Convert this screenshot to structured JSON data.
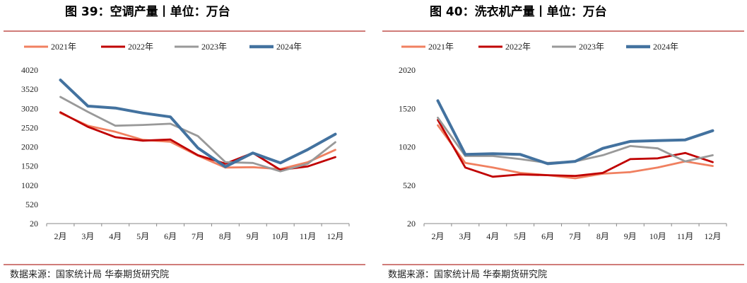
{
  "source_text": "数据来源：国家统计局 华泰期货研究院",
  "chart_data": [
    {
      "type": "line",
      "title": "图 39：空调产量丨单位：万台",
      "categories": [
        "2月",
        "3月",
        "4月",
        "5月",
        "6月",
        "7月",
        "8月",
        "9月",
        "10月",
        "11月",
        "12月"
      ],
      "ylim": [
        20,
        4020
      ],
      "yticks": [
        20,
        520,
        1020,
        1520,
        2020,
        2520,
        3020,
        3520,
        4020
      ],
      "grid": false,
      "legend_position": "top",
      "series": [
        {
          "name": "2021年",
          "color": "#f08060",
          "values": [
            2900,
            2570,
            2410,
            2200,
            2150,
            1790,
            1480,
            1490,
            1440,
            1620,
            1940
          ]
        },
        {
          "name": "2022年",
          "color": "#c00000",
          "values": [
            2920,
            2540,
            2270,
            2180,
            2210,
            1800,
            1580,
            1860,
            1420,
            1510,
            1750
          ]
        },
        {
          "name": "2023年",
          "color": "#999999",
          "values": [
            3320,
            2930,
            2570,
            2590,
            2620,
            2300,
            1620,
            1600,
            1380,
            1580,
            2140
          ]
        },
        {
          "name": "2024年",
          "color": "#43729f",
          "values": [
            3760,
            3080,
            3030,
            2900,
            2800,
            1990,
            1500,
            1860,
            1600,
            1950,
            2350
          ]
        }
      ]
    },
    {
      "type": "line",
      "title": "图 40：洗衣机产量丨单位：万台",
      "categories": [
        "2月",
        "3月",
        "4月",
        "5月",
        "6月",
        "7月",
        "8月",
        "9月",
        "10月",
        "11月",
        "12月"
      ],
      "ylim": [
        20,
        2020
      ],
      "yticks": [
        20,
        520,
        1020,
        1520,
        2020
      ],
      "grid": false,
      "legend_position": "top",
      "series": [
        {
          "name": "2021年",
          "color": "#f08060",
          "values": [
            1300,
            810,
            750,
            680,
            650,
            610,
            670,
            690,
            750,
            830,
            770
          ]
        },
        {
          "name": "2022年",
          "color": "#c00000",
          "values": [
            1370,
            750,
            630,
            660,
            650,
            640,
            680,
            860,
            870,
            940,
            820
          ]
        },
        {
          "name": "2023年",
          "color": "#999999",
          "values": [
            1400,
            900,
            900,
            860,
            810,
            830,
            910,
            1030,
            1000,
            830,
            910
          ]
        },
        {
          "name": "2024年",
          "color": "#43729f",
          "values": [
            1620,
            920,
            930,
            920,
            800,
            830,
            1000,
            1090,
            1100,
            1110,
            1230
          ]
        }
      ]
    }
  ]
}
